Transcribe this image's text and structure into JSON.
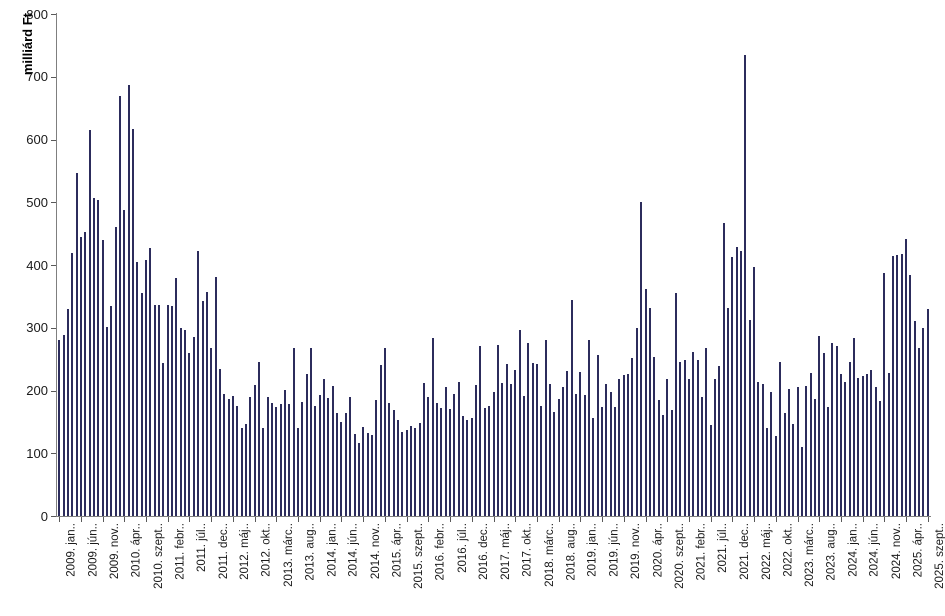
{
  "chart_data": {
    "type": "bar",
    "title": "",
    "xlabel": "",
    "ylabel": "milliárd Ft",
    "ylim": [
      0,
      800
    ],
    "y_ticks": [
      0,
      100,
      200,
      300,
      400,
      500,
      600,
      700,
      800
    ],
    "grid": false,
    "legend": "none",
    "bar_color": "#2c2c5c",
    "axis_color": "#7f7f7f",
    "tick_color": "#595959",
    "label_color": "#1a1a1a",
    "x_tick_every": 5,
    "x_tick_labels": [
      "2009. jan..",
      "2009. jún..",
      "2009. nov..",
      "2010. ápr..",
      "2010. szept..",
      "2011. febr..",
      "2011. júl..",
      "2011. dec..",
      "2012. máj..",
      "2012. okt..",
      "2013. márc..",
      "2013. aug..",
      "2014. jan..",
      "2014. jún..",
      "2014. nov..",
      "2015. ápr..",
      "2015. szept..",
      "2016. febr..",
      "2016. júl..",
      "2016. dec..",
      "2017. máj..",
      "2017. okt..",
      "2018. márc..",
      "2018. aug..",
      "2019. jan..",
      "2019. jún..",
      "2019. nov..",
      "2020. ápr..",
      "2020. szept..",
      "2021. febr..",
      "2021. júl..",
      "2021. dec..",
      "2022. máj..",
      "2022. okt..",
      "2023. márc..",
      "2023. aug..",
      "2024. jan..",
      "2024. jún..",
      "2024. nov..",
      "2025. ápr..",
      "2025. szept.."
    ],
    "categories": [
      "2009-01",
      "2009-02",
      "2009-03",
      "2009-04",
      "2009-05",
      "2009-06",
      "2009-07",
      "2009-08",
      "2009-09",
      "2009-10",
      "2009-11",
      "2009-12",
      "2010-01",
      "2010-02",
      "2010-03",
      "2010-04",
      "2010-05",
      "2010-06",
      "2010-07",
      "2010-08",
      "2010-09",
      "2010-10",
      "2010-11",
      "2010-12",
      "2011-01",
      "2011-02",
      "2011-03",
      "2011-04",
      "2011-05",
      "2011-06",
      "2011-07",
      "2011-08",
      "2011-09",
      "2011-10",
      "2011-11",
      "2011-12",
      "2012-01",
      "2012-02",
      "2012-03",
      "2012-04",
      "2012-05",
      "2012-06",
      "2012-07",
      "2012-08",
      "2012-09",
      "2012-10",
      "2012-11",
      "2012-12",
      "2013-01",
      "2013-02",
      "2013-03",
      "2013-04",
      "2013-05",
      "2013-06",
      "2013-07",
      "2013-08",
      "2013-09",
      "2013-10",
      "2013-11",
      "2013-12",
      "2014-01",
      "2014-02",
      "2014-03",
      "2014-04",
      "2014-05",
      "2014-06",
      "2014-07",
      "2014-08",
      "2014-09",
      "2014-10",
      "2014-11",
      "2014-12",
      "2015-01",
      "2015-02",
      "2015-03",
      "2015-04",
      "2015-05",
      "2015-06",
      "2015-07",
      "2015-08",
      "2015-09",
      "2015-10",
      "2015-11",
      "2015-12",
      "2016-01",
      "2016-02",
      "2016-03",
      "2016-04",
      "2016-05",
      "2016-06",
      "2016-07",
      "2016-08",
      "2016-09",
      "2016-10",
      "2016-11",
      "2016-12",
      "2017-01",
      "2017-02",
      "2017-03",
      "2017-04",
      "2017-05",
      "2017-06",
      "2017-07",
      "2017-08",
      "2017-09",
      "2017-10",
      "2017-11",
      "2017-12",
      "2018-01",
      "2018-02",
      "2018-03",
      "2018-04",
      "2018-05",
      "2018-06",
      "2018-07",
      "2018-08",
      "2018-09",
      "2018-10",
      "2018-11",
      "2018-12",
      "2019-01",
      "2019-02",
      "2019-03",
      "2019-04",
      "2019-05",
      "2019-06",
      "2019-07",
      "2019-08",
      "2019-09",
      "2019-10",
      "2019-11",
      "2019-12",
      "2020-01",
      "2020-02",
      "2020-03",
      "2020-04",
      "2020-05",
      "2020-06",
      "2020-07",
      "2020-08",
      "2020-09",
      "2020-10",
      "2020-11",
      "2020-12",
      "2021-01",
      "2021-02",
      "2021-03",
      "2021-04",
      "2021-05",
      "2021-06",
      "2021-07",
      "2021-08",
      "2021-09",
      "2021-10",
      "2021-11",
      "2021-12",
      "2022-01",
      "2022-02",
      "2022-03",
      "2022-04",
      "2022-05",
      "2022-06",
      "2022-07",
      "2022-08",
      "2022-09",
      "2022-10",
      "2022-11",
      "2022-12",
      "2023-01",
      "2023-02",
      "2023-03",
      "2023-04",
      "2023-05",
      "2023-06",
      "2023-07",
      "2023-08",
      "2023-09",
      "2023-10",
      "2023-11",
      "2023-12",
      "2024-01",
      "2024-02",
      "2024-03",
      "2024-04",
      "2024-05",
      "2024-06",
      "2024-07",
      "2024-08",
      "2024-09",
      "2024-10",
      "2024-11",
      "2024-12",
      "2025-01",
      "2025-02",
      "2025-03",
      "2025-04",
      "2025-05",
      "2025-06",
      "2025-07",
      "2025-08",
      "2025-09"
    ],
    "values": [
      280,
      288,
      330,
      419,
      546,
      444,
      453,
      615,
      507,
      504,
      440,
      302,
      335,
      460,
      669,
      487,
      687,
      617,
      405,
      356,
      408,
      427,
      337,
      336,
      244,
      337,
      335,
      379,
      299,
      296,
      259,
      286,
      422,
      343,
      357,
      267,
      381,
      234,
      194,
      186,
      191,
      175,
      141,
      146,
      190,
      209,
      246,
      141,
      190,
      180,
      174,
      178,
      201,
      178,
      268,
      141,
      181,
      227,
      268,
      176,
      193,
      218,
      188,
      207,
      164,
      150,
      164,
      190,
      131,
      117,
      142,
      133,
      129,
      185,
      240,
      267,
      180,
      169,
      153,
      134,
      137,
      143,
      140,
      148,
      212,
      189,
      283,
      180,
      172,
      206,
      170,
      194,
      214,
      159,
      153,
      156,
      209,
      271,
      172,
      176,
      197,
      272,
      212,
      242,
      210,
      232,
      296,
      192,
      275,
      244,
      242,
      176,
      281,
      210,
      166,
      186,
      206,
      231,
      345,
      195,
      230,
      193,
      281,
      156,
      256,
      174,
      211,
      198,
      173,
      218,
      225,
      227,
      252,
      300,
      500,
      361,
      332,
      254,
      185,
      161,
      218,
      169,
      355,
      246,
      249,
      218,
      262,
      249,
      190,
      267,
      145,
      219,
      239,
      467,
      332,
      413,
      428,
      423,
      735,
      313,
      397,
      214,
      210,
      140,
      198,
      127,
      246,
      164,
      202,
      147,
      205,
      110,
      207,
      228,
      186,
      287,
      260,
      173,
      276,
      271,
      227,
      214,
      246,
      283,
      220,
      223,
      226,
      232,
      206,
      183,
      387,
      228,
      414,
      416,
      418,
      441,
      384,
      311,
      267,
      299,
      330
    ]
  }
}
